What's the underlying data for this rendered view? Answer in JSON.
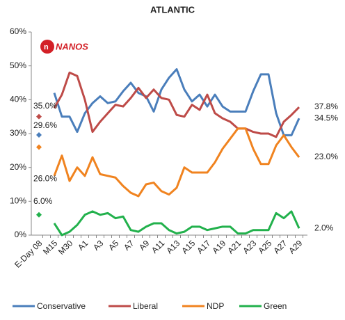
{
  "chart_data": {
    "type": "line",
    "title": "ATLANTIC",
    "logo": "NANOS",
    "categories": [
      "E-Day 08",
      null,
      "M15",
      null,
      "M30",
      null,
      "A1",
      null,
      "A3",
      null,
      "A5",
      null,
      "A7",
      null,
      "A9",
      null,
      "A11",
      null,
      "A13",
      null,
      "A15",
      null,
      "A17",
      null,
      "A19",
      null,
      "A21",
      null,
      "A23",
      null,
      "A25",
      null,
      "A27",
      null,
      "A29"
    ],
    "ylim": [
      0,
      60
    ],
    "yticks": [
      {
        "value": 0,
        "label": "0%"
      },
      {
        "value": 10,
        "label": "10%"
      },
      {
        "value": 20,
        "label": "20%"
      },
      {
        "value": 30,
        "label": "30%"
      },
      {
        "value": 40,
        "label": "40%"
      },
      {
        "value": 50,
        "label": "50%"
      },
      {
        "value": 60,
        "label": "60%"
      }
    ],
    "legend": "bottom",
    "series": [
      {
        "name": "Conservative",
        "color": "#4a7ebb",
        "values": [
          29.6,
          null,
          42,
          35,
          35,
          30.5,
          36,
          39,
          41,
          39,
          39.5,
          42.5,
          45,
          42,
          41,
          36.5,
          43,
          46.5,
          49,
          43,
          39.5,
          41.5,
          38,
          41.5,
          38,
          36.5,
          36.5,
          36.5,
          42.5,
          47.5,
          47.5,
          36,
          29.5,
          29.5,
          34.5
        ],
        "value_labels": [
          "29.6%",
          null,
          null,
          null,
          null,
          null,
          null,
          null,
          null,
          null,
          null,
          null,
          null,
          null,
          null,
          null,
          null,
          null,
          null,
          null,
          null,
          null,
          null,
          null,
          null,
          null,
          null,
          null,
          null,
          null,
          null,
          null,
          null,
          null,
          "34.5%"
        ]
      },
      {
        "name": "Liberal",
        "color": "#be4b48",
        "values": [
          35.0,
          null,
          37.5,
          41.5,
          48,
          47,
          40,
          30.5,
          33.5,
          36,
          38.5,
          38,
          40.5,
          43.5,
          40.5,
          43,
          40.5,
          40,
          35.5,
          35,
          38.5,
          37,
          41.5,
          36,
          34.5,
          33.5,
          31.5,
          31.5,
          30.5,
          30,
          30,
          29,
          33.5,
          35.5,
          37.8
        ],
        "value_labels": [
          "35.0%",
          null,
          null,
          null,
          null,
          null,
          null,
          null,
          null,
          null,
          null,
          null,
          null,
          null,
          null,
          null,
          null,
          null,
          null,
          null,
          null,
          null,
          null,
          null,
          null,
          null,
          null,
          null,
          null,
          null,
          null,
          null,
          null,
          null,
          "37.8%"
        ]
      },
      {
        "name": "NDP",
        "color": "#f0831f",
        "values": [
          26.0,
          null,
          17.5,
          23.5,
          16,
          20,
          17.5,
          23,
          18,
          17.5,
          17,
          14.5,
          12.5,
          11.5,
          15,
          15.5,
          13,
          12,
          14,
          20,
          18.5,
          18.5,
          18.5,
          21.5,
          25.5,
          28.5,
          31.5,
          31.5,
          25.5,
          21,
          21,
          26.5,
          29.5,
          26,
          23.0
        ],
        "value_labels": [
          "26.0%",
          null,
          null,
          null,
          null,
          null,
          null,
          null,
          null,
          null,
          null,
          null,
          null,
          null,
          null,
          null,
          null,
          null,
          null,
          null,
          null,
          null,
          null,
          null,
          null,
          null,
          null,
          null,
          null,
          null,
          null,
          null,
          null,
          null,
          "23.0%"
        ]
      },
      {
        "name": "Green",
        "color": "#22b14c",
        "values": [
          6.0,
          null,
          3.5,
          0,
          1,
          3,
          6,
          7,
          6,
          6.5,
          5,
          5.5,
          1.5,
          1,
          2.5,
          3.5,
          3.5,
          1.5,
          0.5,
          1,
          2.5,
          2.5,
          1.5,
          2,
          2.5,
          2.5,
          0.5,
          0.5,
          1.5,
          1.5,
          1.5,
          6.5,
          5,
          7,
          2.0
        ],
        "value_labels": [
          "6.0%",
          null,
          null,
          null,
          null,
          null,
          null,
          null,
          null,
          null,
          null,
          null,
          null,
          null,
          null,
          null,
          null,
          null,
          null,
          null,
          null,
          null,
          null,
          null,
          null,
          null,
          null,
          null,
          null,
          null,
          null,
          null,
          null,
          null,
          "2.0%"
        ]
      }
    ]
  }
}
